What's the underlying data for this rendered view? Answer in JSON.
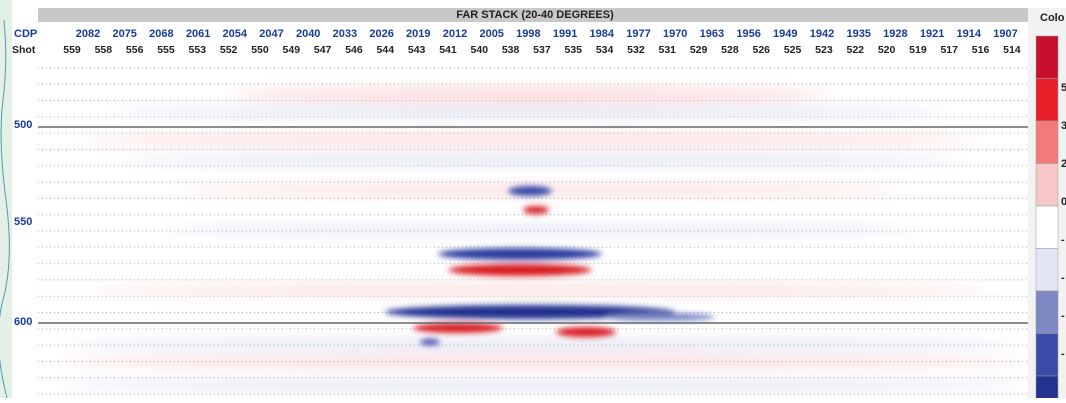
{
  "header": {
    "title": "FAR STACK (20-40 DEGREES)",
    "cdp_label": "CDP",
    "shot_label": "Shot"
  },
  "cdp": [
    "2082",
    "2075",
    "2068",
    "2061",
    "2054",
    "2047",
    "2040",
    "2033",
    "2026",
    "2019",
    "2012",
    "2005",
    "1998",
    "1991",
    "1984",
    "1977",
    "1970",
    "1963",
    "1956",
    "1949",
    "1942",
    "1935",
    "1928",
    "1921",
    "1914",
    "1907"
  ],
  "shots": [
    "559",
    "558",
    "556",
    "555",
    "553",
    "552",
    "550",
    "549",
    "547",
    "546",
    "544",
    "543",
    "541",
    "540",
    "538",
    "537",
    "535",
    "534",
    "532",
    "531",
    "529",
    "528",
    "526",
    "525",
    "523",
    "522",
    "520",
    "519",
    "517",
    "516",
    "514"
  ],
  "depths": [
    "500",
    "550",
    "600"
  ],
  "colorbar": {
    "title": "Colo",
    "labels": [
      "5",
      "3",
      "2",
      "0",
      "-",
      "-",
      "-",
      "-"
    ]
  }
}
